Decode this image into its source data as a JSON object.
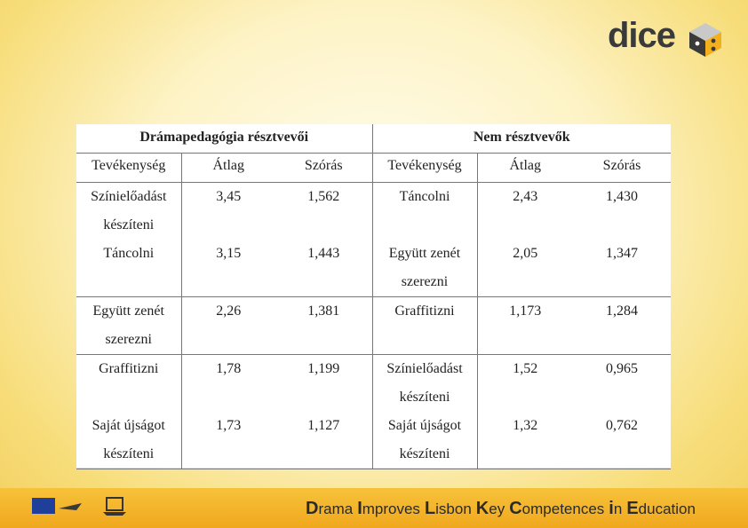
{
  "logo": "dice",
  "table": {
    "groups": [
      "Drámapedagógia résztvevői",
      "Nem résztvevők"
    ],
    "columns": [
      "Tevékenység",
      "Átlag",
      "Szórás",
      "Tevékenység",
      "Átlag",
      "Szórás"
    ],
    "rows": [
      [
        "Színielőadást készíteni",
        "3,45",
        "1,562",
        "Táncolni",
        "2,43",
        "1,430"
      ],
      [
        "Táncolni",
        "3,15",
        "1,443",
        "Együtt zenét szerezni",
        "2,05",
        "1,347"
      ],
      [
        "Együtt zenét szerezni",
        "2,26",
        "1,381",
        "Graffitizni",
        "1,173",
        "1,284"
      ],
      [
        "Graffitizni",
        "1,78",
        "1,199",
        "Színielőadást készíteni",
        "1,52",
        "0,965"
      ],
      [
        "Saját újságot készíteni",
        "1,73",
        "1,127",
        "Saját újságot készíteni",
        "1,32",
        "0,762"
      ]
    ]
  },
  "footer": [
    "Drama",
    "Improves",
    "Lisbon",
    "Key",
    "Competences",
    "in",
    "Education"
  ]
}
